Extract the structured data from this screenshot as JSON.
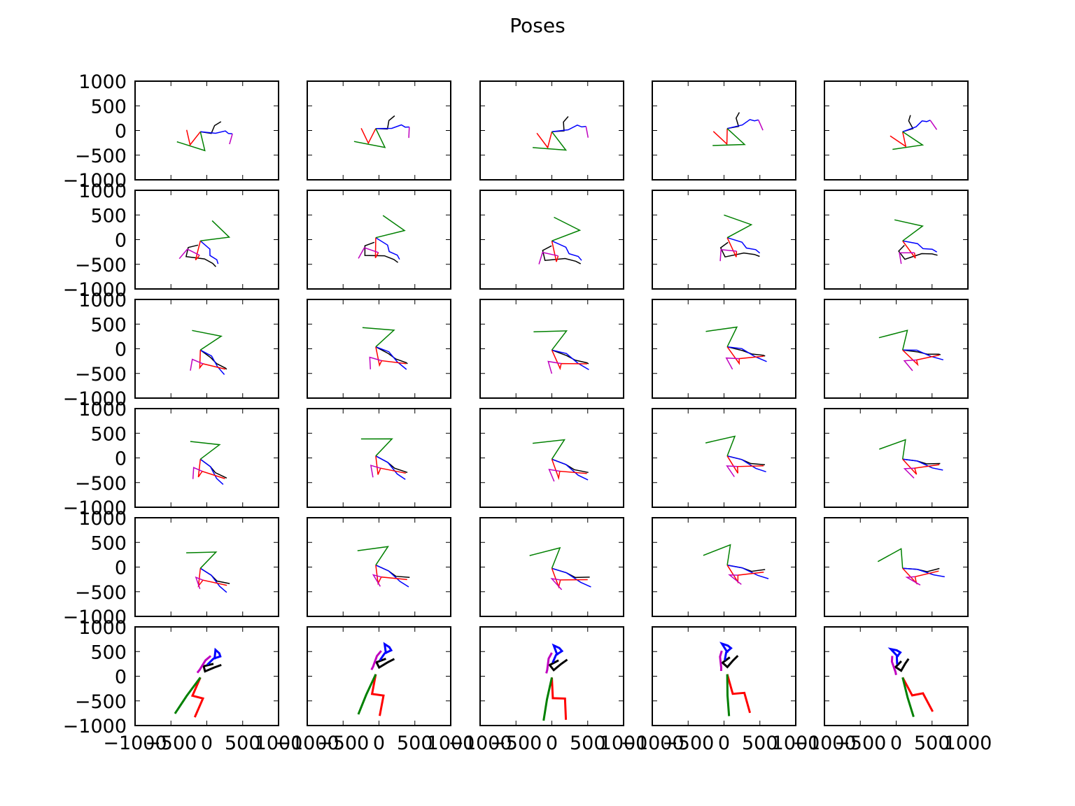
{
  "chart_data": {
    "type": "line",
    "title": "Poses",
    "layout": {
      "rows": 6,
      "cols": 5
    },
    "xlim": [
      -1000,
      1000
    ],
    "ylim": [
      -1000,
      1000
    ],
    "xticks": [
      -1000,
      -500,
      0,
      500,
      1000
    ],
    "yticks": [
      -1000,
      -500,
      0,
      500,
      1000
    ],
    "xtick_labels": [
      "−1000",
      "−500",
      "0",
      "500",
      "1000"
    ],
    "ytick_labels": [
      "−1000",
      "−500",
      "0",
      "500",
      "1000"
    ],
    "grid": false,
    "colors": {
      "black": "#000000",
      "blue": "#0000ff",
      "red": "#ff0000",
      "green": "#008000",
      "magenta": "#bf00bf"
    },
    "row_templates": [
      {
        "black": [
          [
            0,
            0
          ],
          [
            170,
            10
          ],
          [
            170,
            190
          ],
          [
            240,
            300
          ]
        ],
        "blue": [
          [
            0,
            0
          ],
          [
            230,
            30
          ],
          [
            360,
            120
          ],
          [
            420,
            80
          ],
          [
            480,
            90
          ]
        ],
        "red": [
          [
            0,
            0
          ],
          [
            -70,
            -320
          ],
          [
            -210,
            -20
          ]
        ],
        "green": [
          [
            0,
            0
          ],
          [
            180,
            -380
          ],
          [
            -280,
            -310
          ]
        ],
        "magenta": [
          [
            480,
            90
          ],
          [
            500,
            -140
          ]
        ]
      },
      {
        "black": [
          [
            0,
            -100
          ],
          [
            -120,
            -200
          ],
          [
            -80,
            -400
          ],
          [
            200,
            -350
          ],
          [
            350,
            -400
          ],
          [
            420,
            -450
          ]
        ],
        "blue": [
          [
            0,
            0
          ],
          [
            200,
            -120
          ],
          [
            250,
            -250
          ],
          [
            380,
            -300
          ],
          [
            430,
            -380
          ]
        ],
        "red": [
          [
            0,
            0
          ],
          [
            80,
            -420
          ],
          [
            100,
            -300
          ]
        ],
        "green": [
          [
            0,
            0
          ],
          [
            380,
            230
          ],
          [
            10,
            480
          ]
        ],
        "magenta": [
          [
            100,
            -300
          ],
          [
            -120,
            -240
          ],
          [
            -160,
            -480
          ]
        ]
      },
      {
        "black": [
          [
            0,
            0
          ],
          [
            200,
            -120
          ],
          [
            320,
            -220
          ],
          [
            480,
            -280
          ],
          [
            500,
            -300
          ]
        ],
        "blue": [
          [
            0,
            0
          ],
          [
            200,
            -80
          ],
          [
            350,
            -280
          ],
          [
            500,
            -420
          ]
        ],
        "red": [
          [
            0,
            0
          ],
          [
            100,
            -380
          ],
          [
            120,
            -280
          ],
          [
            480,
            -300
          ]
        ],
        "green": [
          [
            0,
            0
          ],
          [
            220,
            380
          ],
          [
            -240,
            380
          ]
        ],
        "magenta": [
          [
            120,
            -280
          ],
          [
            -60,
            -230
          ],
          [
            -20,
            -480
          ]
        ]
      },
      {
        "black": [
          [
            0,
            0
          ],
          [
            200,
            -100
          ],
          [
            320,
            -200
          ],
          [
            520,
            -250
          ]
        ],
        "blue": [
          [
            0,
            0
          ],
          [
            200,
            -100
          ],
          [
            380,
            -310
          ],
          [
            520,
            -400
          ]
        ],
        "red": [
          [
            0,
            0
          ],
          [
            110,
            -380
          ],
          [
            120,
            -240
          ],
          [
            500,
            -270
          ]
        ],
        "green": [
          [
            0,
            0
          ],
          [
            160,
            400
          ],
          [
            -280,
            310
          ]
        ],
        "magenta": [
          [
            120,
            -240
          ],
          [
            -30,
            -210
          ],
          [
            50,
            -450
          ]
        ]
      },
      {
        "black": [
          [
            0,
            0
          ],
          [
            200,
            -100
          ],
          [
            320,
            -200
          ],
          [
            520,
            -200
          ]
        ],
        "blue": [
          [
            0,
            0
          ],
          [
            200,
            -100
          ],
          [
            390,
            -300
          ],
          [
            530,
            -400
          ]
        ],
        "red": [
          [
            0,
            0
          ],
          [
            80,
            -380
          ],
          [
            110,
            -240
          ],
          [
            490,
            -250
          ]
        ],
        "green": [
          [
            0,
            0
          ],
          [
            130,
            410
          ],
          [
            -300,
            270
          ]
        ],
        "magenta": [
          [
            110,
            -240
          ],
          [
            -10,
            -210
          ],
          [
            120,
            -440
          ]
        ]
      },
      {
        "width": 3,
        "black": [
          [
            80,
            350
          ],
          [
            -40,
            250
          ],
          [
            20,
            150
          ],
          [
            120,
            280
          ],
          [
            200,
            370
          ]
        ],
        "blue": [
          [
            60,
            450
          ],
          [
            0,
            650
          ],
          [
            80,
            600
          ],
          [
            120,
            540
          ],
          [
            40,
            460
          ],
          [
            0,
            300
          ]
        ],
        "red": [
          [
            0,
            0
          ],
          [
            30,
            -420
          ],
          [
            200,
            -420
          ],
          [
            230,
            -850
          ]
        ],
        "green": [
          [
            0,
            0
          ],
          [
            -50,
            -450
          ],
          [
            -80,
            -880
          ]
        ],
        "magenta": [
          [
            -20,
            500
          ],
          [
            -60,
            380
          ],
          [
            -70,
            150
          ],
          [
            -80,
            80
          ]
        ]
      }
    ]
  }
}
